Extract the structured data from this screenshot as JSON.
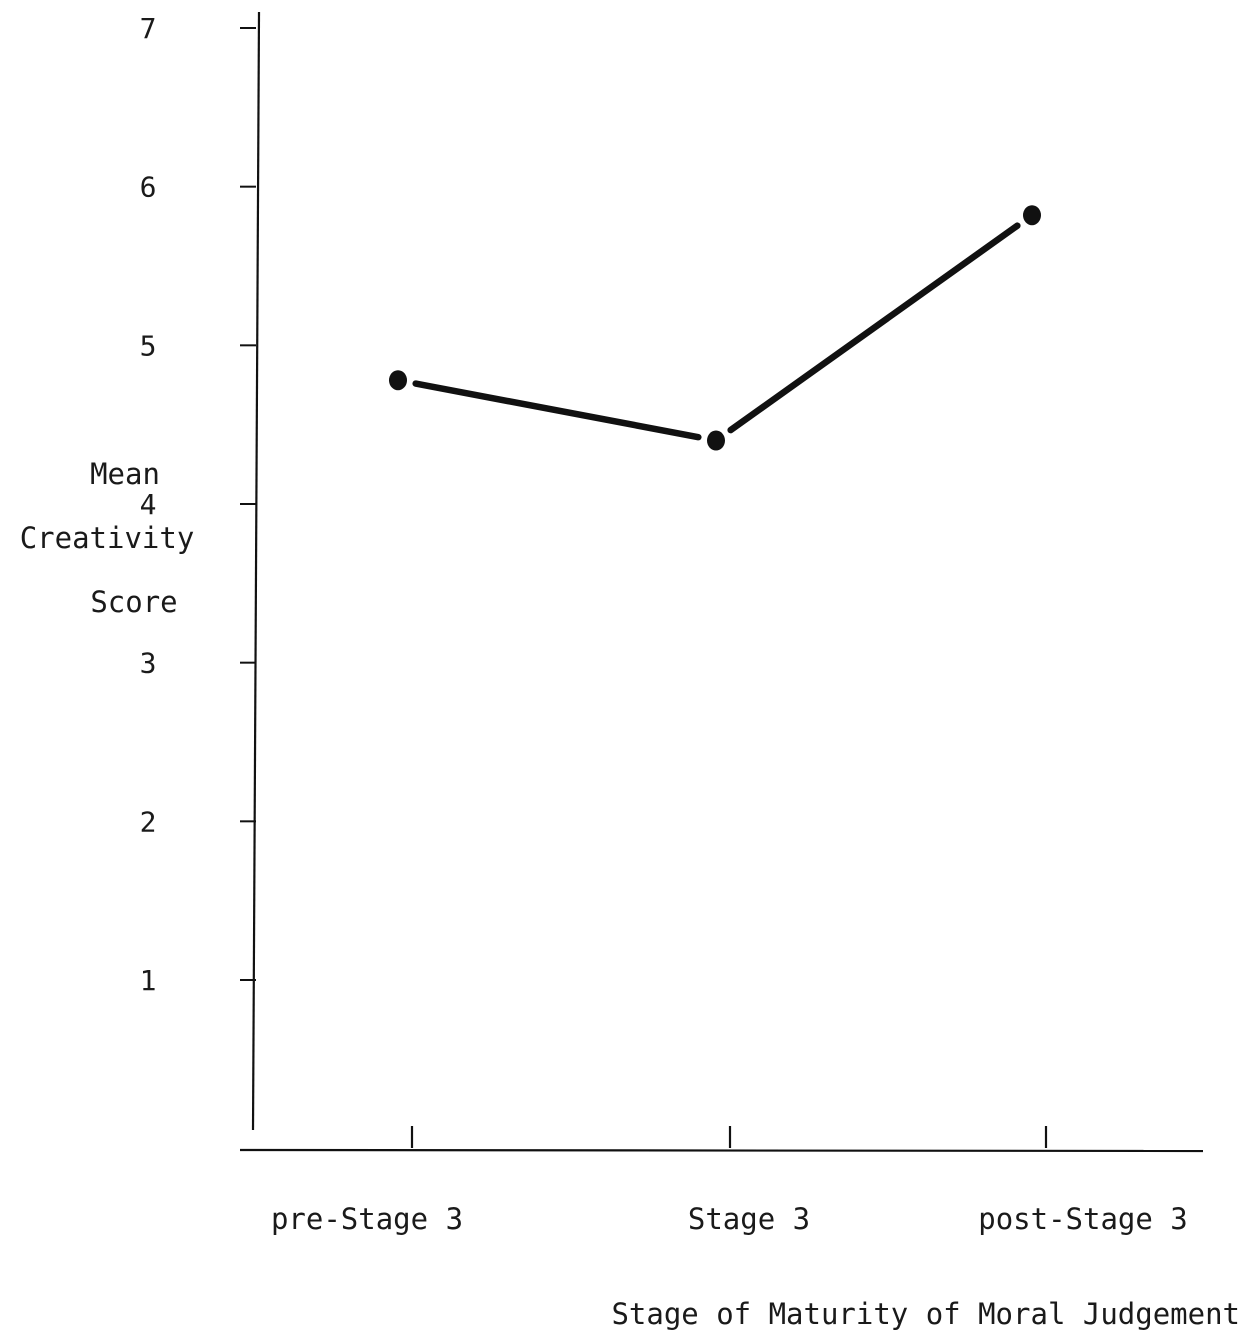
{
  "chart_data": {
    "type": "line",
    "title": "",
    "xlabel": "Stage of Maturity of Moral Judgement",
    "ylabel": [
      "Mean",
      "Creativity",
      "Score"
    ],
    "categories": [
      "pre-Stage 3",
      "Stage 3",
      "post-Stage 3"
    ],
    "series": [
      {
        "values": [
          4.78,
          4.4,
          5.82
        ]
      }
    ],
    "ylim": [
      0,
      7
    ],
    "yticks": [
      1,
      2,
      3,
      4,
      5,
      6,
      7
    ],
    "grid": false,
    "legend": "none",
    "colors": {
      "ink": "#111111"
    }
  }
}
